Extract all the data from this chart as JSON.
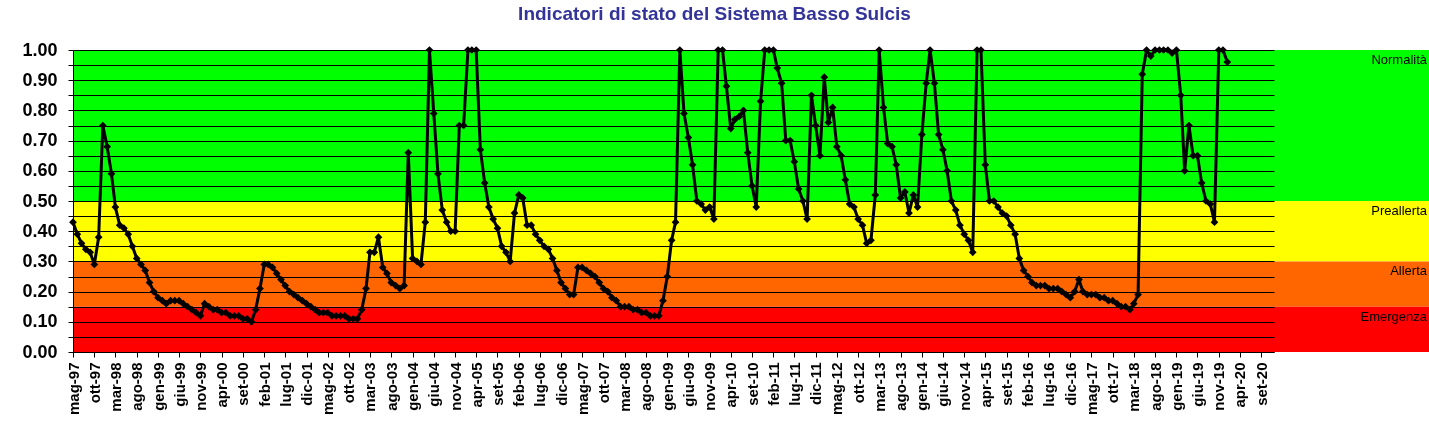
{
  "chart_data": {
    "type": "line",
    "title": "Indicatori di stato del Sistema Basso Sulcis",
    "x": [
      "1997-05",
      "1997-06",
      "1997-07",
      "1997-08",
      "1997-09",
      "1997-10",
      "1997-11",
      "1997-12",
      "1998-01",
      "1998-02",
      "1998-03",
      "1998-04",
      "1998-05",
      "1998-06",
      "1998-07",
      "1998-08",
      "1998-09",
      "1998-10",
      "1998-11",
      "1998-12",
      "1999-01",
      "1999-02",
      "1999-03",
      "1999-04",
      "1999-05",
      "1999-06",
      "1999-07",
      "1999-08",
      "1999-09",
      "1999-10",
      "1999-11",
      "1999-12",
      "2000-01",
      "2000-02",
      "2000-03",
      "2000-04",
      "2000-05",
      "2000-06",
      "2000-07",
      "2000-08",
      "2000-09",
      "2000-10",
      "2000-11",
      "2000-12",
      "2001-01",
      "2001-02",
      "2001-03",
      "2001-04",
      "2001-05",
      "2001-06",
      "2001-07",
      "2001-08",
      "2001-09",
      "2001-10",
      "2001-11",
      "2001-12",
      "2002-01",
      "2002-02",
      "2002-03",
      "2002-04",
      "2002-05",
      "2002-06",
      "2002-07",
      "2002-08",
      "2002-09",
      "2002-10",
      "2002-11",
      "2002-12",
      "2003-01",
      "2003-02",
      "2003-03",
      "2003-04",
      "2003-05",
      "2003-06",
      "2003-07",
      "2003-08",
      "2003-09",
      "2003-10",
      "2003-11",
      "2003-12",
      "2004-01",
      "2004-02",
      "2004-03",
      "2004-04",
      "2004-05",
      "2004-06",
      "2004-07",
      "2004-08",
      "2004-09",
      "2004-10",
      "2004-11",
      "2004-12",
      "2005-01",
      "2005-02",
      "2005-03",
      "2005-04",
      "2005-05",
      "2005-06",
      "2005-07",
      "2005-08",
      "2005-09",
      "2005-10",
      "2005-11",
      "2005-12",
      "2006-01",
      "2006-02",
      "2006-03",
      "2006-04",
      "2006-05",
      "2006-06",
      "2006-07",
      "2006-08",
      "2006-09",
      "2006-10",
      "2006-11",
      "2006-12",
      "2007-01",
      "2007-02",
      "2007-03",
      "2007-04",
      "2007-05",
      "2007-06",
      "2007-07",
      "2007-08",
      "2007-09",
      "2007-10",
      "2007-11",
      "2007-12",
      "2008-01",
      "2008-02",
      "2008-03",
      "2008-04",
      "2008-05",
      "2008-06",
      "2008-07",
      "2008-08",
      "2008-09",
      "2008-10",
      "2008-11",
      "2008-12",
      "2009-01",
      "2009-02",
      "2009-03",
      "2009-04",
      "2009-05",
      "2009-06",
      "2009-07",
      "2009-08",
      "2009-09",
      "2009-10",
      "2009-11",
      "2009-12",
      "2010-01",
      "2010-02",
      "2010-03",
      "2010-04",
      "2010-05",
      "2010-06",
      "2010-07",
      "2010-08",
      "2010-09",
      "2010-10",
      "2010-11",
      "2010-12",
      "2011-01",
      "2011-02",
      "2011-03",
      "2011-04",
      "2011-05",
      "2011-06",
      "2011-07",
      "2011-08",
      "2011-09",
      "2011-10",
      "2011-11",
      "2011-12",
      "2012-01",
      "2012-02",
      "2012-03",
      "2012-04",
      "2012-05",
      "2012-06",
      "2012-07",
      "2012-08",
      "2012-09",
      "2012-10",
      "2012-11",
      "2012-12",
      "2013-01",
      "2013-02",
      "2013-03",
      "2013-04",
      "2013-05",
      "2013-06",
      "2013-07",
      "2013-08",
      "2013-09",
      "2013-10",
      "2013-11",
      "2013-12",
      "2014-01",
      "2014-02",
      "2014-03",
      "2014-04",
      "2014-05",
      "2014-06",
      "2014-07",
      "2014-08",
      "2014-09",
      "2014-10",
      "2014-11",
      "2014-12",
      "2015-01",
      "2015-02",
      "2015-03",
      "2015-04",
      "2015-05",
      "2015-06",
      "2015-07",
      "2015-08",
      "2015-09",
      "2015-10",
      "2015-11",
      "2015-12",
      "2016-01",
      "2016-02",
      "2016-03",
      "2016-04",
      "2016-05",
      "2016-06",
      "2016-07",
      "2016-08",
      "2016-09",
      "2016-10",
      "2016-11",
      "2016-12",
      "2017-01",
      "2017-02",
      "2017-03",
      "2017-04",
      "2017-05",
      "2017-06",
      "2017-07",
      "2017-08",
      "2017-09",
      "2017-10",
      "2017-11",
      "2017-12",
      "2018-01",
      "2018-02",
      "2018-03",
      "2018-04",
      "2018-05",
      "2018-06",
      "2018-07",
      "2018-08",
      "2018-09",
      "2018-10",
      "2018-11",
      "2018-12",
      "2019-01",
      "2019-02",
      "2019-03",
      "2019-04",
      "2019-05",
      "2019-06",
      "2019-07",
      "2019-08",
      "2019-09",
      "2019-10",
      "2019-11",
      "2019-12",
      "2020-01"
    ],
    "series": [
      {
        "color": "#000000",
        "values": [
          0.43,
          0.39,
          0.36,
          0.34,
          0.33,
          0.29,
          0.38,
          0.75,
          0.68,
          0.59,
          0.48,
          0.42,
          0.41,
          0.39,
          0.35,
          0.31,
          0.29,
          0.27,
          0.23,
          0.2,
          0.18,
          0.17,
          0.16,
          0.17,
          0.17,
          0.17,
          0.16,
          0.15,
          0.14,
          0.13,
          0.12,
          0.16,
          0.15,
          0.14,
          0.14,
          0.13,
          0.13,
          0.12,
          0.12,
          0.12,
          0.11,
          0.11,
          0.1,
          0.14,
          0.21,
          0.29,
          0.29,
          0.28,
          0.26,
          0.24,
          0.22,
          0.2,
          0.19,
          0.18,
          0.17,
          0.16,
          0.15,
          0.14,
          0.13,
          0.13,
          0.13,
          0.12,
          0.12,
          0.12,
          0.12,
          0.11,
          0.11,
          0.11,
          0.14,
          0.21,
          0.33,
          0.33,
          0.38,
          0.28,
          0.26,
          0.23,
          0.22,
          0.21,
          0.22,
          0.66,
          0.31,
          0.3,
          0.29,
          0.43,
          1.0,
          0.79,
          0.59,
          0.47,
          0.43,
          0.4,
          0.4,
          0.75,
          0.75,
          1.0,
          1.0,
          1.0,
          0.67,
          0.56,
          0.48,
          0.44,
          0.41,
          0.35,
          0.33,
          0.3,
          0.46,
          0.52,
          0.51,
          0.42,
          0.42,
          0.39,
          0.37,
          0.35,
          0.34,
          0.31,
          0.27,
          0.23,
          0.21,
          0.19,
          0.19,
          0.28,
          0.28,
          0.27,
          0.26,
          0.25,
          0.23,
          0.21,
          0.2,
          0.18,
          0.17,
          0.15,
          0.15,
          0.15,
          0.14,
          0.14,
          0.13,
          0.13,
          0.12,
          0.12,
          0.12,
          0.17,
          0.25,
          0.37,
          0.43,
          1.0,
          0.79,
          0.71,
          0.62,
          0.5,
          0.49,
          0.47,
          0.48,
          0.44,
          1.0,
          1.0,
          0.88,
          0.74,
          0.77,
          0.78,
          0.8,
          0.66,
          0.55,
          0.48,
          0.83,
          1.0,
          1.0,
          1.0,
          0.94,
          0.89,
          0.7,
          0.7,
          0.63,
          0.54,
          0.5,
          0.44,
          0.85,
          0.75,
          0.65,
          0.91,
          0.76,
          0.81,
          0.68,
          0.65,
          0.57,
          0.49,
          0.48,
          0.44,
          0.42,
          0.36,
          0.37,
          0.52,
          1.0,
          0.81,
          0.69,
          0.68,
          0.62,
          0.51,
          0.53,
          0.46,
          0.52,
          0.48,
          0.72,
          0.89,
          1.0,
          0.89,
          0.72,
          0.67,
          0.6,
          0.5,
          0.47,
          0.42,
          0.39,
          0.37,
          0.33,
          1.0,
          1.0,
          0.62,
          0.5,
          0.5,
          0.48,
          0.46,
          0.45,
          0.42,
          0.39,
          0.31,
          0.27,
          0.25,
          0.23,
          0.22,
          0.22,
          0.22,
          0.21,
          0.21,
          0.21,
          0.2,
          0.19,
          0.18,
          0.2,
          0.24,
          0.2,
          0.19,
          0.19,
          0.19,
          0.18,
          0.18,
          0.17,
          0.17,
          0.16,
          0.15,
          0.15,
          0.14,
          0.16,
          0.19,
          0.92,
          1.0,
          0.98,
          1.0,
          1.0,
          1.0,
          1.0,
          0.99,
          1.0,
          0.85,
          0.6,
          0.75,
          0.65,
          0.65,
          0.56,
          0.5,
          0.49,
          0.43,
          1.0,
          1.0,
          0.96
        ]
      }
    ],
    "xlim": [
      "1997-05",
      "2020-12"
    ],
    "xticks": [
      {
        "value": "1997-05",
        "label": "mag-97"
      },
      {
        "value": "1997-10",
        "label": "ott-97"
      },
      {
        "value": "1998-03",
        "label": "mar-98"
      },
      {
        "value": "1998-08",
        "label": "ago-98"
      },
      {
        "value": "1999-01",
        "label": "gen-99"
      },
      {
        "value": "1999-06",
        "label": "giu-99"
      },
      {
        "value": "1999-11",
        "label": "nov-99"
      },
      {
        "value": "2000-04",
        "label": "apr-00"
      },
      {
        "value": "2000-09",
        "label": "set-00"
      },
      {
        "value": "2001-02",
        "label": "feb-01"
      },
      {
        "value": "2001-07",
        "label": "lug-01"
      },
      {
        "value": "2001-12",
        "label": "dic-01"
      },
      {
        "value": "2002-05",
        "label": "mag-02"
      },
      {
        "value": "2002-10",
        "label": "ott-02"
      },
      {
        "value": "2003-03",
        "label": "mar-03"
      },
      {
        "value": "2003-08",
        "label": "ago-03"
      },
      {
        "value": "2004-01",
        "label": "gen-04"
      },
      {
        "value": "2004-06",
        "label": "giu-04"
      },
      {
        "value": "2004-11",
        "label": "nov-04"
      },
      {
        "value": "2005-04",
        "label": "apr-05"
      },
      {
        "value": "2005-09",
        "label": "set-05"
      },
      {
        "value": "2006-02",
        "label": "feb-06"
      },
      {
        "value": "2006-07",
        "label": "lug-06"
      },
      {
        "value": "2006-12",
        "label": "dic-06"
      },
      {
        "value": "2007-05",
        "label": "mag-07"
      },
      {
        "value": "2007-10",
        "label": "ott-07"
      },
      {
        "value": "2008-03",
        "label": "mar-08"
      },
      {
        "value": "2008-08",
        "label": "ago-08"
      },
      {
        "value": "2009-01",
        "label": "gen-09"
      },
      {
        "value": "2009-06",
        "label": "giu-09"
      },
      {
        "value": "2009-11",
        "label": "nov-09"
      },
      {
        "value": "2010-04",
        "label": "apr-10"
      },
      {
        "value": "2010-09",
        "label": "set-10"
      },
      {
        "value": "2011-02",
        "label": "feb-11"
      },
      {
        "value": "2011-07",
        "label": "lug-11"
      },
      {
        "value": "2011-12",
        "label": "dic-11"
      },
      {
        "value": "2012-05",
        "label": "mag-12"
      },
      {
        "value": "2012-10",
        "label": "ott-12"
      },
      {
        "value": "2013-03",
        "label": "mar-13"
      },
      {
        "value": "2013-08",
        "label": "ago-13"
      },
      {
        "value": "2014-01",
        "label": "gen-14"
      },
      {
        "value": "2014-06",
        "label": "giu-14"
      },
      {
        "value": "2014-11",
        "label": "nov-14"
      },
      {
        "value": "2015-04",
        "label": "apr-15"
      },
      {
        "value": "2015-09",
        "label": "set-15"
      },
      {
        "value": "2016-02",
        "label": "feb-16"
      },
      {
        "value": "2016-07",
        "label": "lug-16"
      },
      {
        "value": "2016-12",
        "label": "dic-16"
      },
      {
        "value": "2017-05",
        "label": "mag-17"
      },
      {
        "value": "2017-10",
        "label": "ott-17"
      },
      {
        "value": "2018-03",
        "label": "mar-18"
      },
      {
        "value": "2018-08",
        "label": "ago-18"
      },
      {
        "value": "2019-01",
        "label": "gen-19"
      },
      {
        "value": "2019-06",
        "label": "giu-19"
      },
      {
        "value": "2019-11",
        "label": "nov-19"
      },
      {
        "value": "2020-04",
        "label": "apr-20"
      },
      {
        "value": "2020-09",
        "label": "set-20"
      }
    ],
    "ylim": [
      0,
      1
    ],
    "yticks": [
      {
        "value": 0,
        "label": "0.00"
      },
      {
        "value": 0.05,
        "label": null
      },
      {
        "value": 0.1,
        "label": "0.10"
      },
      {
        "value": 0.15,
        "label": null
      },
      {
        "value": 0.2,
        "label": "0.20"
      },
      {
        "value": 0.25,
        "label": null
      },
      {
        "value": 0.3,
        "label": "0.30"
      },
      {
        "value": 0.35,
        "label": null
      },
      {
        "value": 0.4,
        "label": "0.40"
      },
      {
        "value": 0.45,
        "label": null
      },
      {
        "value": 0.5,
        "label": "0.50"
      },
      {
        "value": 0.55,
        "label": null
      },
      {
        "value": 0.6,
        "label": "0.60"
      },
      {
        "value": 0.65,
        "label": null
      },
      {
        "value": 0.7,
        "label": "0.70"
      },
      {
        "value": 0.75,
        "label": null
      },
      {
        "value": 0.8,
        "label": "0.80"
      },
      {
        "value": 0.85,
        "label": null
      },
      {
        "value": 0.9,
        "label": "0.90"
      },
      {
        "value": 0.95,
        "label": null
      },
      {
        "value": 1,
        "label": "1.00"
      }
    ],
    "grid": "y",
    "marker": "diamond",
    "line_style": "solid",
    "bands": [
      {
        "axis": "y",
        "from": 0.5,
        "to": 1,
        "label": "Normalità",
        "color": "#00ff00"
      },
      {
        "axis": "y",
        "from": 0.3,
        "to": 0.5,
        "label": "Preallerta",
        "color": "#ffff00"
      },
      {
        "axis": "y",
        "from": 0.15,
        "to": 0.3,
        "label": "Allerta",
        "color": "#ff6600"
      },
      {
        "axis": "y",
        "from": 0,
        "to": 0.15,
        "label": "Emergenza",
        "color": "#ff0000"
      }
    ]
  }
}
